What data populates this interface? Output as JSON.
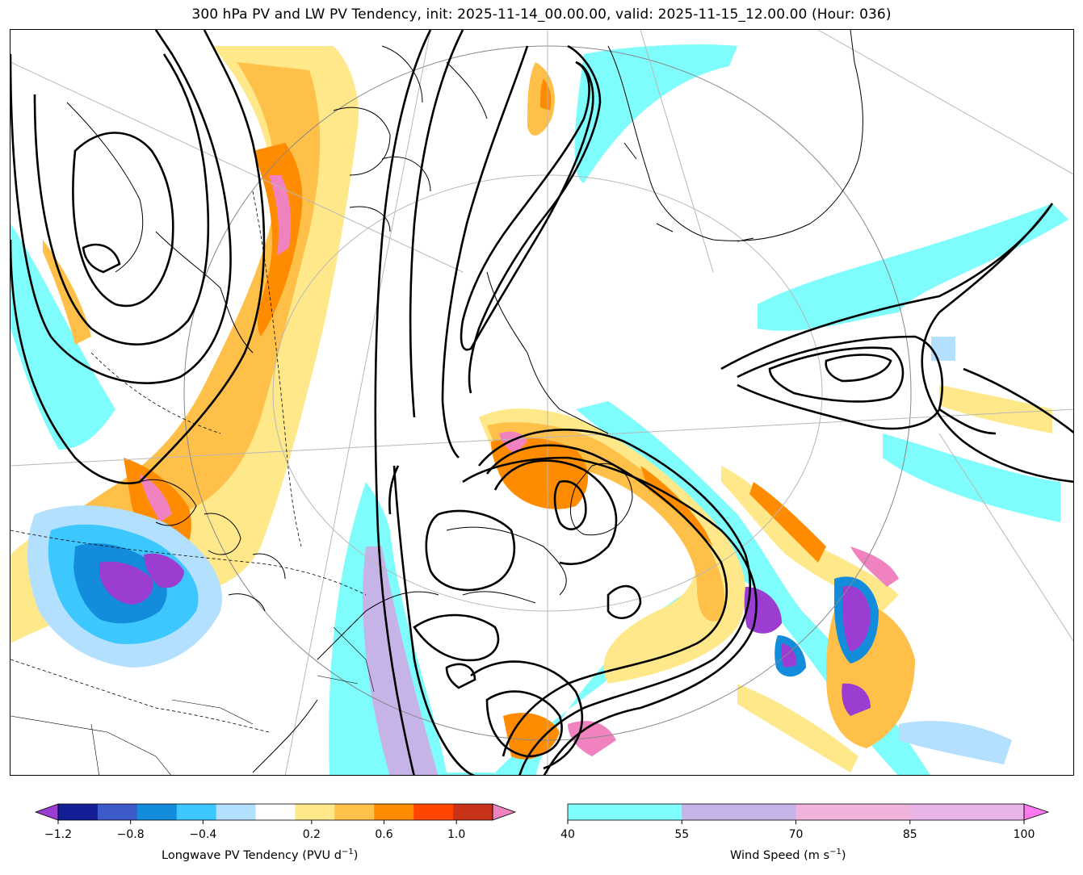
{
  "title": "300 hPa PV and LW PV Tendency, init: 2025-11-14_00.00.00, valid: 2025-11-15_12.00.00 (Hour: 036)",
  "colors": {
    "cyan": "#7ffcfc",
    "lavender": "#c6b4e8",
    "pink": "#f082c0",
    "purple": "#9a3dd0",
    "yellow": "#ffe88a",
    "orange_light": "#ffc04a",
    "orange": "#ff8c00",
    "red_orange": "#ff4500",
    "red_dark": "#c83218",
    "blue_light": "#b4e0ff",
    "blue_mid": "#3cc8ff",
    "blue": "#148cdc",
    "blue_dark": "#285ac8",
    "navy": "#141e96"
  },
  "colorbar_pv": {
    "label_main": "Longwave PV Tendency (PVU d",
    "label_exp": "−1",
    "label_close": ")",
    "ticks": [
      "−1.2",
      "−0.8",
      "−0.4",
      "0.2",
      "0.6",
      "1.0"
    ],
    "tick_values": [
      -1.2,
      -0.8,
      -0.4,
      0.2,
      0.6,
      1.0
    ],
    "colors": [
      "#9a3dd0",
      "#141e96",
      "#3c5ac8",
      "#148cdc",
      "#3cc8ff",
      "#b4e0ff",
      "#ffffff",
      "#ffe88a",
      "#ffc04a",
      "#ff8c00",
      "#ff4500",
      "#c83218",
      "#f082c0"
    ]
  },
  "colorbar_wind": {
    "label_main": "Wind Speed (m s",
    "label_exp": "−1",
    "label_close": ")",
    "ticks": [
      "40",
      "55",
      "70",
      "85",
      "100"
    ],
    "colors": [
      "#7ffcfc",
      "#c6b4e8",
      "#f0b4dc",
      "#e8b4e8",
      "#ff78f0"
    ]
  }
}
